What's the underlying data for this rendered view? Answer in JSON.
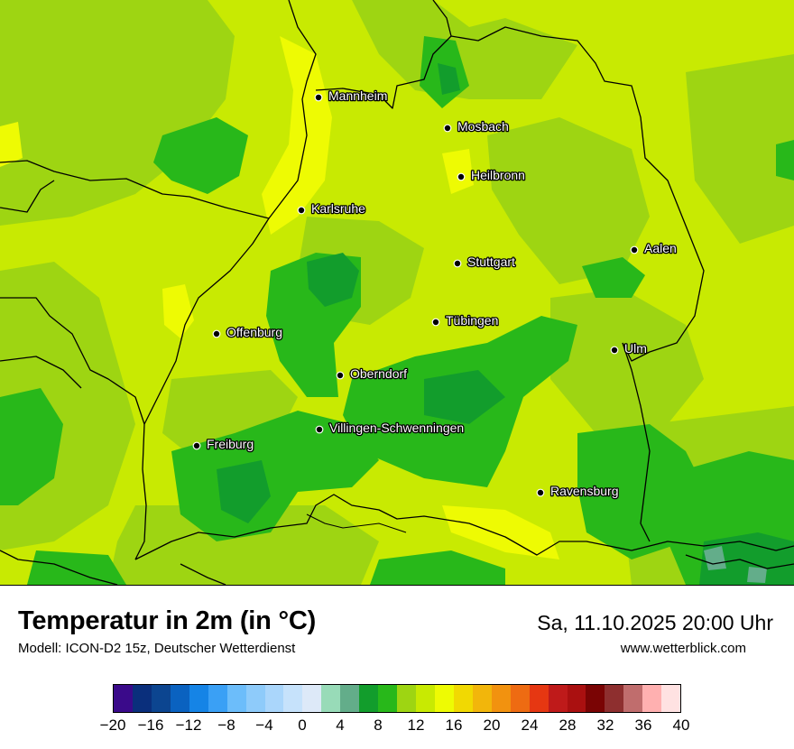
{
  "title": "Temperatur in 2m (in °C)",
  "model": "Modell: ICON-D2 15z, Deutscher Wetterdienst",
  "datetime": "Sa, 11.10.2025 20:00 Uhr",
  "site": "www.wetterblick.com",
  "cities": [
    {
      "name": "Mannheim"
    },
    {
      "name": "Mosbach"
    },
    {
      "name": "Heilbronn"
    },
    {
      "name": "Karlsruhe"
    },
    {
      "name": "Aalen"
    },
    {
      "name": "Stuttgart"
    },
    {
      "name": "Tübingen"
    },
    {
      "name": "Offenburg"
    },
    {
      "name": "Ulm"
    },
    {
      "name": "Oberndorf"
    },
    {
      "name": "Villingen-Schwenningen"
    },
    {
      "name": "Freiburg"
    },
    {
      "name": "Ravensburg"
    }
  ],
  "legend": {
    "colors": [
      "#3a0a8a",
      "#0a2f7c",
      "#0c4590",
      "#0a62c0",
      "#1584e6",
      "#3aa0f5",
      "#6cbdfa",
      "#8ecbfa",
      "#aad6fb",
      "#c6e2fb",
      "#dde9f8",
      "#98dbb8",
      "#63ad8a",
      "#129d2c",
      "#28b81a",
      "#9ed512",
      "#c8ea02",
      "#eefb03",
      "#f1d902",
      "#f2b60b",
      "#f2920f",
      "#ee6b12",
      "#e63712",
      "#bf1a1a",
      "#aa1010",
      "#7a0404",
      "#8e2f2f",
      "#c06d6d",
      "#ffb0b0",
      "#ffe2e2"
    ],
    "ticks": [
      "−20",
      "−16",
      "−12",
      "−8",
      "−4",
      "0",
      "4",
      "8",
      "12",
      "16",
      "20",
      "24",
      "28",
      "32",
      "36",
      "40"
    ]
  }
}
